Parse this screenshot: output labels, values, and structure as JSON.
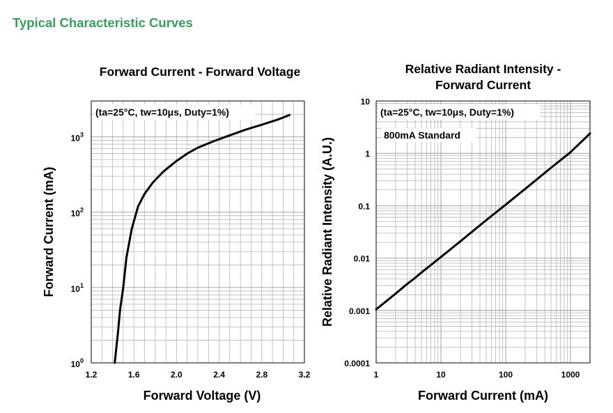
{
  "page": {
    "heading": "Typical Characteristic Curves"
  },
  "chart_data": [
    {
      "type": "line",
      "title": "Forward Current - Forward Voltage",
      "xlabel": "Forward Voltage (V)",
      "ylabel": "Forward Current (mA)",
      "xlim": [
        1.2,
        3.2
      ],
      "ylim": [
        1,
        3000
      ],
      "yscale": "log",
      "xticks": [
        "1.2",
        "1.6",
        "2.0",
        "2.4",
        "2.8",
        "3.2"
      ],
      "yticks": [
        {
          "base": "10",
          "exp": "0"
        },
        {
          "base": "10",
          "exp": "1"
        },
        {
          "base": "10",
          "exp": "2"
        },
        {
          "base": "10",
          "exp": "3"
        }
      ],
      "annotation": "(ta=25°C, tw=10μs, Duty=1%)",
      "grid": true,
      "series": [
        {
          "x": [
            1.42,
            1.45,
            1.47,
            1.5,
            1.53,
            1.58,
            1.64,
            1.7,
            1.78,
            1.88,
            2.0,
            2.1,
            2.2,
            2.35,
            2.5,
            2.65,
            2.8,
            2.95,
            3.06
          ],
          "y": [
            1,
            2.5,
            5,
            10,
            25,
            60,
            120,
            175,
            250,
            350,
            480,
            600,
            720,
            880,
            1050,
            1250,
            1450,
            1700,
            1950
          ]
        }
      ]
    },
    {
      "type": "line",
      "title": "Relative Radiant Intensity -\nForward Current",
      "xlabel": "Forward Current (mA)",
      "ylabel": "Relative Radiant Intensity (A.U.)",
      "xlim": [
        1,
        2000
      ],
      "ylim": [
        0.0001,
        10
      ],
      "xscale": "log",
      "yscale": "log",
      "xticks": [
        "1",
        "10",
        "100",
        "1000"
      ],
      "yticks": [
        "0.0001",
        "0.001",
        "0.01",
        "0.1",
        "1",
        "10"
      ],
      "annotation": "(ta=25°C, tw=10μs, Duty=1%)",
      "annotation2": "800mA Standard",
      "grid": true,
      "series": [
        {
          "x": [
            1,
            2,
            3,
            4,
            5,
            10,
            20,
            50,
            100,
            200,
            500,
            1000,
            2000
          ],
          "y": [
            0.00105,
            0.0021,
            0.0032,
            0.0042,
            0.0053,
            0.0105,
            0.021,
            0.053,
            0.105,
            0.21,
            0.53,
            1.05,
            2.4
          ]
        }
      ]
    }
  ]
}
